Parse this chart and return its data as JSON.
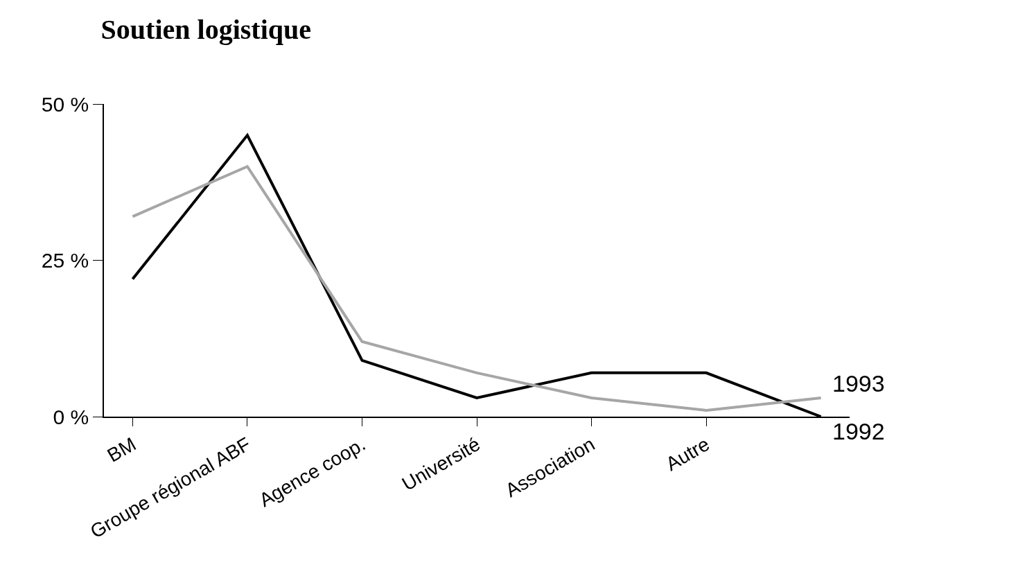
{
  "chart_data": {
    "type": "line",
    "title": "Soutien logistique",
    "categories": [
      "BM",
      "Groupe régional ABF",
      "Agence coop.",
      "Université",
      "Association",
      "Autre",
      null
    ],
    "series": [
      {
        "name": "1992",
        "color": "#000000",
        "values": [
          22,
          45,
          9,
          3,
          7,
          7,
          0
        ]
      },
      {
        "name": "1993",
        "color": "#a6a6a6",
        "values": [
          32,
          40,
          12,
          7,
          3,
          1,
          3
        ]
      }
    ],
    "ylim": [
      0,
      50
    ],
    "yticks": [
      {
        "value": 0,
        "label": "0 %"
      },
      {
        "value": 25,
        "label": "25 %"
      },
      {
        "value": 50,
        "label": "50 %"
      }
    ],
    "grid": false,
    "legend": false,
    "marker": "none",
    "line_style": "solid"
  }
}
